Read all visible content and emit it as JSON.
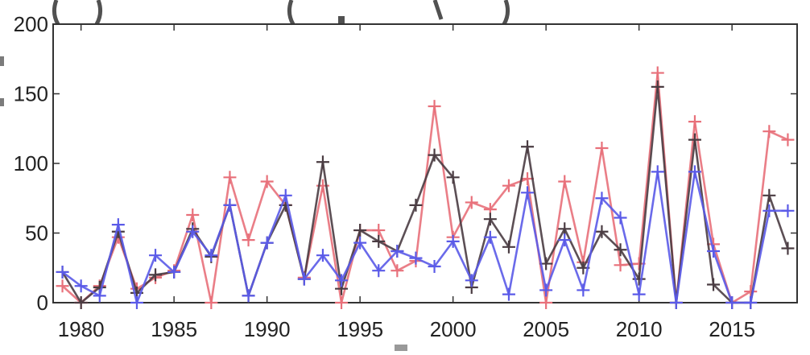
{
  "chart_data": {
    "type": "line",
    "title": "",
    "xlabel": "",
    "ylabel": "",
    "xlim": [
      1978.5,
      2018.5
    ],
    "ylim": [
      0,
      200
    ],
    "grid": false,
    "legend": "none",
    "x_ticks": [
      1980,
      1985,
      1990,
      1995,
      2000,
      2005,
      2010,
      2015
    ],
    "y_ticks": [
      0,
      50,
      100,
      150,
      200
    ],
    "x_tick_labels": [
      "1980",
      "1985",
      "1990",
      "1995",
      "2000",
      "2005",
      "2010",
      "2015"
    ],
    "y_tick_labels": [
      "0",
      "50",
      "100",
      "150",
      "200"
    ],
    "marker": "plus",
    "series": [
      {
        "color": "#e8707a",
        "x": [
          1979,
          1980,
          1981,
          1982,
          1983,
          1984,
          1985,
          1986,
          1987,
          1988,
          1989,
          1990,
          1991,
          1992,
          1993,
          1994,
          1995,
          1996,
          1997,
          1998,
          1999,
          2000,
          2001,
          2002,
          2003,
          2004,
          2005,
          2006,
          2007,
          2008,
          2009,
          2010,
          2011,
          2012,
          2013,
          2014,
          2015,
          2016,
          2017,
          2018
        ],
        "values": [
          12,
          0,
          12,
          47,
          10,
          18,
          23,
          63,
          0,
          90,
          45,
          87,
          70,
          18,
          84,
          0,
          52,
          52,
          23,
          30,
          141,
          47,
          72,
          67,
          84,
          89,
          0,
          87,
          29,
          111,
          27,
          28,
          165,
          0,
          130,
          42,
          0,
          8,
          123,
          117
        ]
      },
      {
        "color": "#4a3c42",
        "x": [
          1979,
          1980,
          1981,
          1982,
          1983,
          1984,
          1985,
          1986,
          1987,
          1988,
          1989,
          1990,
          1991,
          1992,
          1993,
          1994,
          1995,
          1996,
          1997,
          1998,
          1999,
          2000,
          2001,
          2002,
          2003,
          2004,
          2005,
          2006,
          2007,
          2008,
          2009,
          2010,
          2011,
          2012,
          2013,
          2014,
          2015,
          2016,
          2017,
          2018
        ],
        "values": [
          22,
          0,
          11,
          51,
          7,
          20,
          22,
          53,
          33,
          70,
          5,
          43,
          70,
          17,
          101,
          10,
          52,
          44,
          37,
          70,
          106,
          90,
          11,
          60,
          40,
          112,
          28,
          53,
          25,
          51,
          38,
          17,
          155,
          0,
          117,
          13,
          0,
          0,
          77,
          39
        ]
      },
      {
        "color": "#5a5ae8",
        "x": [
          1979,
          1980,
          1981,
          1982,
          1983,
          1984,
          1985,
          1986,
          1987,
          1988,
          1989,
          1990,
          1991,
          1992,
          1993,
          1994,
          1995,
          1996,
          1997,
          1998,
          1999,
          2000,
          2001,
          2002,
          2003,
          2004,
          2005,
          2006,
          2007,
          2008,
          2009,
          2010,
          2011,
          2012,
          2013,
          2014,
          2015,
          2016,
          2017,
          2018
        ],
        "values": [
          22,
          12,
          5,
          56,
          0,
          34,
          22,
          51,
          34,
          70,
          5,
          43,
          77,
          17,
          34,
          16,
          43,
          23,
          37,
          32,
          26,
          44,
          16,
          47,
          6,
          79,
          9,
          45,
          9,
          75,
          61,
          6,
          94,
          0,
          94,
          37,
          0,
          0,
          66,
          66
        ]
      }
    ]
  }
}
